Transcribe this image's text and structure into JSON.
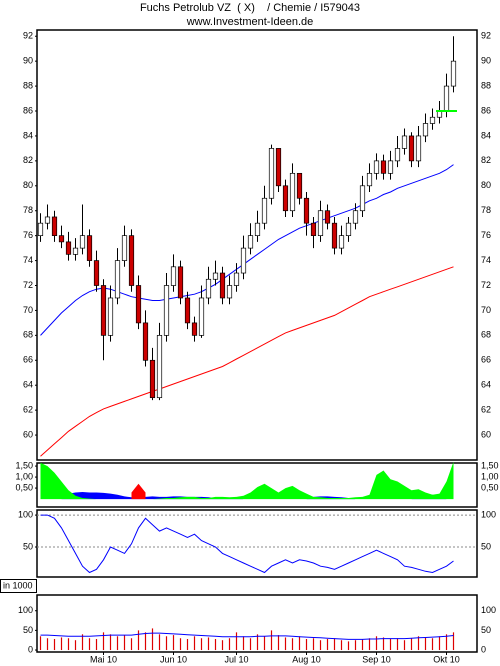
{
  "chart_data": [
    {
      "type": "candlestick",
      "title": "Fuchs Petrolub VZ  ( X)    / Chemie / I579043",
      "subtitle": "www.Investment-Ideen.de",
      "up_color": "#ffffff",
      "down_color": "#cc0000",
      "open": [
        76,
        77,
        77.5,
        76,
        75.5,
        74.5,
        75,
        76,
        74,
        72,
        68,
        71,
        74,
        76,
        72,
        69,
        66,
        63,
        68,
        72,
        73.5,
        71,
        69,
        68,
        71,
        72.5,
        73,
        71,
        72,
        73,
        75,
        76,
        77,
        79,
        83,
        80,
        78,
        81,
        79,
        77,
        76,
        78,
        77,
        75,
        76,
        77,
        78,
        80,
        81,
        82,
        81,
        82,
        83,
        84,
        82,
        84,
        85,
        85.5,
        86,
        88
      ],
      "high": [
        77.8,
        78.5,
        78,
        76.8,
        76.3,
        75.8,
        78.5,
        76.5,
        74.8,
        72.5,
        72,
        75,
        76.8,
        76.5,
        72.8,
        70,
        67,
        69,
        73,
        74.5,
        74,
        71.5,
        69.5,
        72,
        73.5,
        74,
        73.5,
        72.8,
        73.8,
        76,
        77,
        78,
        80,
        83.3,
        83,
        80.5,
        81.8,
        81,
        79.5,
        77.5,
        78.8,
        78.5,
        77.5,
        76.8,
        77.5,
        78.6,
        80.8,
        81.8,
        82.6,
        82.5,
        82.8,
        84,
        84.6,
        84.3,
        84.8,
        85.8,
        86.2,
        86.8,
        89,
        92
      ],
      "low": [
        75.5,
        76.5,
        75.5,
        75,
        74,
        74,
        74.5,
        73.5,
        71.5,
        66,
        67.5,
        70.5,
        73.5,
        71.5,
        68.5,
        65.5,
        62.8,
        62.8,
        67.5,
        71.5,
        70.5,
        68.5,
        67.5,
        67.8,
        70.5,
        72,
        70.5,
        70.5,
        71.5,
        72.5,
        74.5,
        75.5,
        76.5,
        78.5,
        79.5,
        77.5,
        77.5,
        78.5,
        76,
        75,
        75.5,
        76.5,
        74.5,
        74.5,
        75.5,
        76.5,
        77.5,
        79.5,
        80.5,
        80.5,
        80.5,
        81.5,
        82.5,
        81.5,
        81.5,
        83.5,
        84.5,
        85,
        85.5,
        87.5
      ],
      "close": [
        77,
        77.5,
        76,
        75.5,
        74.5,
        75,
        76,
        74,
        72,
        68,
        71,
        74,
        76,
        72,
        69,
        66,
        63,
        68,
        72,
        73.5,
        71,
        69,
        68,
        71,
        72.5,
        73,
        71,
        72,
        73,
        75,
        76,
        77,
        79,
        83,
        80,
        78,
        81,
        79,
        77,
        76,
        78,
        77,
        75,
        76,
        77,
        78,
        80,
        81,
        82,
        81,
        82,
        83,
        84,
        82,
        84,
        85,
        85.5,
        86,
        88,
        90
      ],
      "series": [
        {
          "color": "#0000ff",
          "values": [
            68,
            68.6,
            69.2,
            69.8,
            70.3,
            70.8,
            71.2,
            71.5,
            71.7,
            71.8,
            71.7,
            71.5,
            71.3,
            71.1,
            71,
            70.9,
            70.8,
            70.8,
            70.9,
            71,
            71.1,
            71.2,
            71.3,
            71.5,
            71.8,
            72.1,
            72.5,
            72.9,
            73.3,
            73.7,
            74.1,
            74.5,
            74.9,
            75.3,
            75.7,
            76,
            76.3,
            76.6,
            76.8,
            77,
            77.2,
            77.4,
            77.6,
            77.8,
            78,
            78.2,
            78.5,
            78.8,
            79,
            79.3,
            79.5,
            79.8,
            80,
            80.2,
            80.4,
            80.6,
            80.8,
            81,
            81.3,
            81.7
          ]
        },
        {
          "color": "#ff0000",
          "values": [
            58.3,
            58.8,
            59.3,
            59.8,
            60.3,
            60.7,
            61.1,
            61.5,
            61.8,
            62.1,
            62.3,
            62.5,
            62.7,
            62.9,
            63.1,
            63.3,
            63.5,
            63.7,
            63.9,
            64.1,
            64.3,
            64.5,
            64.7,
            64.9,
            65.1,
            65.3,
            65.5,
            65.8,
            66.1,
            66.4,
            66.7,
            67,
            67.3,
            67.6,
            67.9,
            68.2,
            68.4,
            68.6,
            68.8,
            69,
            69.2,
            69.4,
            69.6,
            69.9,
            70.2,
            70.5,
            70.8,
            71.1,
            71.3,
            71.5,
            71.7,
            71.9,
            72.1,
            72.3,
            72.5,
            72.7,
            72.9,
            73.1,
            73.3,
            73.5
          ]
        }
      ],
      "hline": {
        "value": 86,
        "color": "#00ff00"
      },
      "ylim": [
        58,
        92.5
      ],
      "yticks": [
        60,
        62,
        64,
        66,
        68,
        70,
        72,
        74,
        76,
        78,
        80,
        82,
        84,
        86,
        88,
        90,
        92
      ]
    },
    {
      "type": "area",
      "series": [
        {
          "color": "#0000ff",
          "values": [
            0,
            0,
            0,
            0,
            0.25,
            0.3,
            0.32,
            0.3,
            0.3,
            0.28,
            0.25,
            0.2,
            0.12,
            0.08,
            0.05,
            0.1,
            0.12,
            0.1,
            0.1,
            0.12,
            0.12,
            0.1,
            0.1,
            0.1,
            0.08,
            0.05,
            0.05,
            0.05,
            0.05,
            0,
            0,
            0,
            0,
            0,
            0,
            0,
            0,
            0,
            0,
            0.1,
            0.12,
            0.12,
            0.1,
            0.08,
            0.05,
            0,
            0,
            0,
            0,
            0,
            0,
            0,
            0,
            0,
            0.1,
            0.2,
            0.2,
            0.1,
            0,
            0
          ]
        },
        {
          "color": "#00ff00",
          "values": [
            1.65,
            1.5,
            1.2,
            0.8,
            0.4,
            0.15,
            0.05,
            0.02,
            0,
            0,
            0,
            0,
            0,
            0,
            0,
            0,
            0,
            0.02,
            0.05,
            0.05,
            0.08,
            0.1,
            0.1,
            0.05,
            0.05,
            0.1,
            0.1,
            0.08,
            0.1,
            0.15,
            0.3,
            0.55,
            0.7,
            0.5,
            0.3,
            0.5,
            0.6,
            0.4,
            0.25,
            0.1,
            0.08,
            0.05,
            0.05,
            0.05,
            0.05,
            0.08,
            0.1,
            0.2,
            1.1,
            1.3,
            0.9,
            0.8,
            0.6,
            0.4,
            0.45,
            0.3,
            0.2,
            0.25,
            0.8,
            1.7
          ]
        },
        {
          "color": "#ff0000",
          "values": [
            null,
            null,
            null,
            null,
            null,
            null,
            null,
            null,
            null,
            null,
            null,
            null,
            null,
            0.3,
            0.7,
            0.3,
            null,
            null,
            null,
            null,
            null,
            null,
            null,
            null,
            null,
            null,
            null,
            null,
            null,
            null,
            null,
            null,
            null,
            null,
            null,
            null,
            null,
            null,
            null,
            null,
            null,
            null,
            null,
            null,
            null,
            null,
            null,
            null,
            null,
            null,
            null,
            null,
            null,
            null,
            null,
            null,
            null,
            null,
            null,
            null
          ]
        }
      ],
      "ylim": [
        -0.36,
        1.64
      ],
      "yticks": [
        {
          "value": 0.5,
          "label": "0,50"
        },
        {
          "value": 1,
          "label": "1,00"
        },
        {
          "value": 1.5,
          "label": "1,50"
        }
      ]
    },
    {
      "type": "line",
      "grid": true,
      "series": [
        {
          "color": "#0000ff",
          "values": [
            100,
            100,
            95,
            80,
            60,
            40,
            20,
            10,
            15,
            30,
            50,
            45,
            40,
            55,
            80,
            95,
            85,
            75,
            80,
            75,
            70,
            65,
            70,
            60,
            55,
            50,
            40,
            35,
            30,
            25,
            20,
            15,
            10,
            20,
            25,
            30,
            25,
            30,
            28,
            25,
            20,
            18,
            15,
            20,
            25,
            30,
            35,
            40,
            45,
            40,
            35,
            30,
            20,
            18,
            15,
            12,
            10,
            15,
            20,
            28
          ]
        }
      ],
      "ylim": [
        3,
        108
      ],
      "yticks": [
        50,
        100
      ]
    },
    {
      "type": "bar",
      "y_label": "in 1000",
      "color": "#dd0000",
      "values": [
        35,
        30,
        28,
        32,
        30,
        25,
        40,
        30,
        28,
        45,
        40,
        35,
        38,
        30,
        50,
        45,
        55,
        40,
        35,
        38,
        30,
        28,
        35,
        30,
        32,
        28,
        25,
        30,
        45,
        35,
        30,
        40,
        35,
        50,
        38,
        32,
        30,
        35,
        28,
        30,
        25,
        28,
        30,
        25,
        22,
        25,
        28,
        30,
        35,
        32,
        28,
        30,
        25,
        30,
        35,
        32,
        30,
        35,
        40,
        45
      ],
      "series": [
        {
          "color": "#0000ff",
          "values": [
            38,
            38,
            37,
            36,
            35,
            35,
            35,
            35,
            36,
            37,
            38,
            38,
            38,
            38,
            40,
            42,
            43,
            43,
            42,
            41,
            40,
            39,
            38,
            37,
            36,
            35,
            34,
            34,
            34,
            34,
            34,
            35,
            35,
            36,
            36,
            36,
            35,
            34,
            33,
            32,
            31,
            30,
            29,
            28,
            27,
            27,
            27,
            28,
            28,
            29,
            29,
            29,
            29,
            30,
            31,
            32,
            33,
            34,
            35,
            37
          ]
        }
      ],
      "categories": [
        null,
        null,
        null,
        null,
        null,
        null,
        null,
        null,
        null,
        "Mai 10",
        null,
        null,
        null,
        null,
        null,
        null,
        null,
        null,
        null,
        "Jun 10",
        null,
        null,
        null,
        null,
        null,
        null,
        null,
        null,
        "Jul 10",
        null,
        null,
        null,
        null,
        null,
        null,
        null,
        null,
        null,
        "Aug 10",
        null,
        null,
        null,
        null,
        null,
        null,
        null,
        null,
        null,
        "Sep 10",
        null,
        null,
        null,
        null,
        null,
        null,
        null,
        null,
        null,
        "Okt 10",
        null
      ],
      "ylim": [
        -5,
        140
      ],
      "yticks": [
        0,
        50,
        100
      ]
    }
  ]
}
